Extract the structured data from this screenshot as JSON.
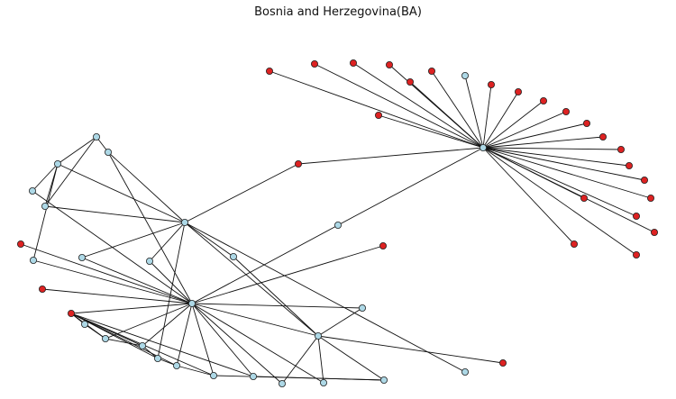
{
  "title": "Bosnia and Herzegovina(BA)",
  "colors": {
    "blue_node": "#add8e6",
    "red_node": "#dd2222",
    "edge": "#111111",
    "node_outline": "#222222"
  },
  "graph": {
    "nodes": [
      {
        "id": "H1",
        "color": "blue"
      },
      {
        "id": "H2",
        "color": "blue"
      },
      {
        "id": "H3",
        "color": "blue"
      },
      {
        "id": "H4",
        "color": "blue"
      },
      {
        "id": "r1",
        "color": "red"
      },
      {
        "id": "r2",
        "color": "red"
      },
      {
        "id": "r3",
        "color": "red"
      },
      {
        "id": "r4",
        "color": "red"
      },
      {
        "id": "r5",
        "color": "red"
      },
      {
        "id": "r6",
        "color": "red"
      },
      {
        "id": "r7",
        "color": "red"
      },
      {
        "id": "r8",
        "color": "red"
      },
      {
        "id": "r9",
        "color": "red"
      },
      {
        "id": "r10",
        "color": "red"
      },
      {
        "id": "r11",
        "color": "red"
      },
      {
        "id": "r12",
        "color": "red"
      },
      {
        "id": "r13",
        "color": "red"
      },
      {
        "id": "r14",
        "color": "red"
      },
      {
        "id": "r15",
        "color": "red"
      },
      {
        "id": "r16",
        "color": "red"
      },
      {
        "id": "r17",
        "color": "red"
      },
      {
        "id": "r18",
        "color": "red"
      },
      {
        "id": "r19",
        "color": "red"
      },
      {
        "id": "r20",
        "color": "red"
      },
      {
        "id": "r21",
        "color": "red"
      },
      {
        "id": "r22",
        "color": "red"
      },
      {
        "id": "b1",
        "color": "blue"
      },
      {
        "id": "L1",
        "color": "blue"
      },
      {
        "id": "L2",
        "color": "blue"
      },
      {
        "id": "L3",
        "color": "blue"
      },
      {
        "id": "L4",
        "color": "blue"
      },
      {
        "id": "L5",
        "color": "blue"
      },
      {
        "id": "L6",
        "color": "blue"
      },
      {
        "id": "L7",
        "color": "blue"
      },
      {
        "id": "L8",
        "color": "blue"
      },
      {
        "id": "L9",
        "color": "blue"
      },
      {
        "id": "L10",
        "color": "blue"
      },
      {
        "id": "L11",
        "color": "blue"
      },
      {
        "id": "L12",
        "color": "blue"
      },
      {
        "id": "L13",
        "color": "blue"
      },
      {
        "id": "L14",
        "color": "blue"
      },
      {
        "id": "L15",
        "color": "blue"
      },
      {
        "id": "L16",
        "color": "blue"
      },
      {
        "id": "L17",
        "color": "blue"
      },
      {
        "id": "L18",
        "color": "blue"
      },
      {
        "id": "L19",
        "color": "blue"
      },
      {
        "id": "L20",
        "color": "blue"
      },
      {
        "id": "L21",
        "color": "blue"
      },
      {
        "id": "rA",
        "color": "red"
      },
      {
        "id": "rB",
        "color": "red"
      },
      {
        "id": "rC",
        "color": "red"
      },
      {
        "id": "rD",
        "color": "red"
      },
      {
        "id": "rE",
        "color": "red"
      },
      {
        "id": "rF",
        "color": "red"
      }
    ],
    "edges": [
      [
        "H1",
        "r1"
      ],
      [
        "H1",
        "r2"
      ],
      [
        "H1",
        "r3"
      ],
      [
        "H1",
        "r4"
      ],
      [
        "H1",
        "r5"
      ],
      [
        "H1",
        "r6"
      ],
      [
        "H1",
        "r7"
      ],
      [
        "H1",
        "r8"
      ],
      [
        "H1",
        "r9"
      ],
      [
        "H1",
        "r10"
      ],
      [
        "H1",
        "r11"
      ],
      [
        "H1",
        "r12"
      ],
      [
        "H1",
        "r13"
      ],
      [
        "H1",
        "r14"
      ],
      [
        "H1",
        "r15"
      ],
      [
        "H1",
        "r16"
      ],
      [
        "H1",
        "r17"
      ],
      [
        "H1",
        "r18"
      ],
      [
        "H1",
        "r19"
      ],
      [
        "H1",
        "r20"
      ],
      [
        "H1",
        "r21"
      ],
      [
        "H1",
        "r22"
      ],
      [
        "H1",
        "b1"
      ],
      [
        "H1",
        "rA"
      ],
      [
        "H1",
        "L9"
      ],
      [
        "H2",
        "rA"
      ],
      [
        "H2",
        "L2"
      ],
      [
        "H2",
        "L3"
      ],
      [
        "H2",
        "L5"
      ],
      [
        "H2",
        "L7"
      ],
      [
        "H2",
        "L8"
      ],
      [
        "H2",
        "L15"
      ],
      [
        "H2",
        "L11"
      ],
      [
        "H3",
        "L2"
      ],
      [
        "H3",
        "L8"
      ],
      [
        "H3",
        "L6"
      ],
      [
        "H3",
        "L4"
      ],
      [
        "H3",
        "rB"
      ],
      [
        "H3",
        "rC"
      ],
      [
        "H3",
        "L7"
      ],
      [
        "H3",
        "L10"
      ],
      [
        "H3",
        "L13"
      ],
      [
        "H3",
        "L14"
      ],
      [
        "H3",
        "L16"
      ],
      [
        "H3",
        "L17"
      ],
      [
        "H3",
        "L18"
      ],
      [
        "H3",
        "L19"
      ],
      [
        "H3",
        "L20"
      ],
      [
        "H3",
        "rD"
      ],
      [
        "H3",
        "L9"
      ],
      [
        "H3",
        "rE"
      ],
      [
        "H3",
        "H4"
      ],
      [
        "H4",
        "L18"
      ],
      [
        "H4",
        "L20"
      ],
      [
        "H4",
        "L11"
      ],
      [
        "H4",
        "H2"
      ],
      [
        "H4",
        "rF"
      ],
      [
        "H4",
        "L21"
      ],
      [
        "H4",
        "L10"
      ],
      [
        "L1",
        "L2"
      ],
      [
        "L1",
        "L3"
      ],
      [
        "L3",
        "L4"
      ],
      [
        "L3",
        "L5"
      ],
      [
        "L3",
        "L6"
      ],
      [
        "L1",
        "L5"
      ],
      [
        "rE",
        "L12"
      ],
      [
        "rE",
        "L13"
      ],
      [
        "rE",
        "L14"
      ],
      [
        "rE",
        "L15"
      ],
      [
        "rE",
        "L16"
      ],
      [
        "rE",
        "L17"
      ],
      [
        "rE",
        "L19"
      ],
      [
        "L12",
        "L13"
      ],
      [
        "L13",
        "L14"
      ],
      [
        "L14",
        "L15"
      ],
      [
        "L15",
        "L16"
      ],
      [
        "L16",
        "L17"
      ],
      [
        "L17",
        "L21"
      ],
      [
        "L19",
        "L21"
      ]
    ]
  }
}
